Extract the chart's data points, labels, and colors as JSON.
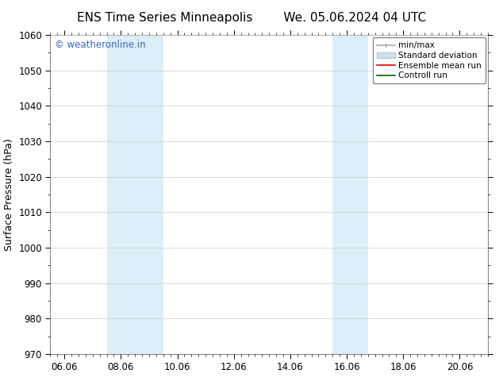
{
  "title_left": "ENS Time Series Minneapolis",
  "title_right": "We. 05.06.2024 04 UTC",
  "ylabel": "Surface Pressure (hPa)",
  "ylim": [
    970,
    1060
  ],
  "yticks": [
    970,
    980,
    990,
    1000,
    1010,
    1020,
    1030,
    1040,
    1050,
    1060
  ],
  "xtick_labels": [
    "06.06",
    "08.06",
    "10.06",
    "12.06",
    "14.06",
    "16.06",
    "18.06",
    "20.06"
  ],
  "xtick_values": [
    0.0,
    2.0,
    4.0,
    6.0,
    8.0,
    10.0,
    12.0,
    14.0
  ],
  "xmin": -0.5,
  "xmax": 15.0,
  "shaded_regions": [
    {
      "xmin": 1.5,
      "xmax": 3.5,
      "color": "#ddeef8"
    },
    {
      "xmin": 9.5,
      "xmax": 10.75,
      "color": "#ddeef8"
    }
  ],
  "watermark_text": "© weatheronline.in",
  "watermark_color": "#3366cc",
  "legend_entries": [
    {
      "label": "min/max",
      "color": "#aaaaaa",
      "lw": 1.2,
      "type": "line_with_caps"
    },
    {
      "label": "Standard deviation",
      "color": "#cce0f0",
      "lw": 5,
      "type": "patch"
    },
    {
      "label": "Ensemble mean run",
      "color": "#dd0000",
      "lw": 1.2,
      "type": "line"
    },
    {
      "label": "Controll run",
      "color": "#006600",
      "lw": 1.2,
      "type": "line"
    }
  ],
  "bg_color": "#ffffff",
  "grid_color": "#cccccc",
  "title_fontsize": 11,
  "label_fontsize": 9,
  "tick_fontsize": 8.5,
  "watermark_fontsize": 8.5,
  "legend_fontsize": 7.5
}
